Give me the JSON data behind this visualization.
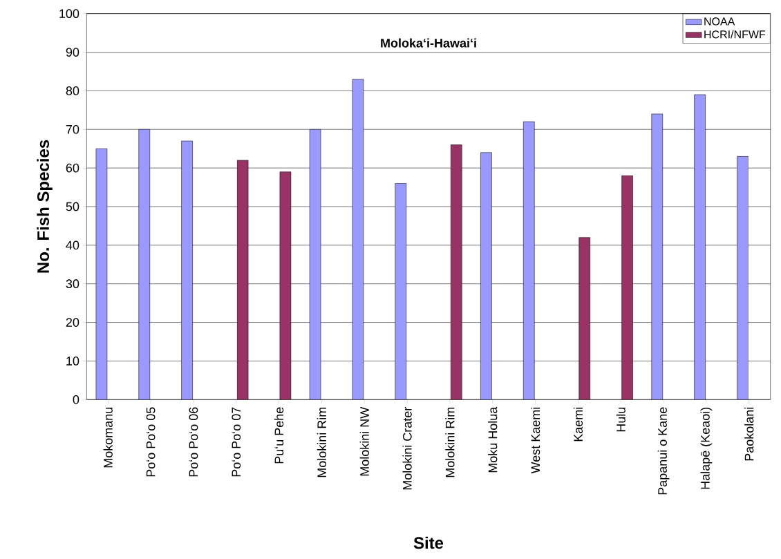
{
  "chart_data": {
    "type": "bar",
    "title": "Moloka‘i-Hawai‘i",
    "xlabel": "Site",
    "ylabel": "No. Fish Species",
    "categories": [
      "Mokomanu",
      "Po‘o Po‘o 05",
      "Po‘o Po‘o 06",
      "Po‘o Po‘o 07",
      "Pu‘u Pehe",
      "Molokini Rim",
      "Molokini NW",
      "Molokini Crater",
      "Molokini Rim",
      "Moku Holua",
      "West Kaemi",
      "Kaemi",
      "Hulu",
      "Papanui o Kane",
      "Halapē (Keaoi)",
      "Paokolani"
    ],
    "series": [
      {
        "name": "NOAA",
        "color": "#9999ff",
        "values": [
          65,
          70,
          67,
          null,
          null,
          70,
          83,
          56,
          null,
          64,
          72,
          null,
          null,
          74,
          79,
          63
        ]
      },
      {
        "name": "HCRI/NFWF",
        "color": "#993366",
        "values": [
          null,
          null,
          null,
          62,
          59,
          null,
          null,
          null,
          66,
          null,
          null,
          42,
          58,
          null,
          null,
          null
        ]
      }
    ],
    "ylim": [
      0,
      100
    ],
    "yticks": [
      0,
      10,
      20,
      30,
      40,
      50,
      60,
      70,
      80,
      90,
      100
    ],
    "grid": "y",
    "legend": "top right"
  }
}
